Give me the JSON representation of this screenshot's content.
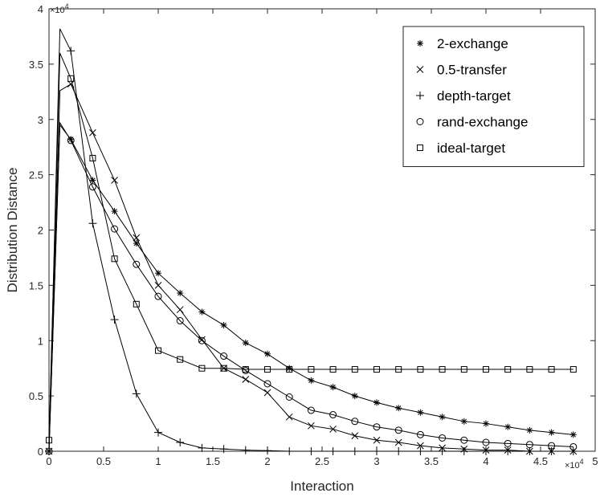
{
  "chart_data": {
    "type": "line",
    "title": "",
    "xlabel": "Interaction",
    "ylabel": "Distribution Distance",
    "x_exponent_label": "×10",
    "x_exponent": "4",
    "y_exponent_label": "×10",
    "y_exponent": "4",
    "xlim": [
      0,
      50000
    ],
    "ylim": [
      0,
      40000
    ],
    "xticks": [
      0,
      5000,
      10000,
      15000,
      20000,
      25000,
      30000,
      35000,
      40000,
      45000,
      50000
    ],
    "xtick_labels": [
      "0",
      "0.5",
      "1",
      "1.5",
      "2",
      "2.5",
      "3",
      "3.5",
      "4",
      "4.5",
      "5"
    ],
    "yticks": [
      0,
      5000,
      10000,
      15000,
      20000,
      25000,
      30000,
      35000,
      40000
    ],
    "ytick_labels": [
      "0",
      "0.5",
      "1",
      "1.5",
      "2",
      "2.5",
      "3",
      "3.5",
      "4"
    ],
    "grid": false,
    "legend_position": "top-right",
    "x": [
      0,
      1000,
      2000,
      4000,
      6000,
      8000,
      10000,
      12000,
      14000,
      16000,
      18000,
      20000,
      22000,
      24000,
      26000,
      28000,
      30000,
      32000,
      34000,
      36000,
      38000,
      40000,
      42000,
      44000,
      46000,
      48000
    ],
    "series": [
      {
        "name": "2-exchange",
        "marker": "asterisk",
        "values": [
          0,
          29500,
          28200,
          24500,
          21700,
          18800,
          16100,
          14300,
          12600,
          11400,
          9800,
          8800,
          7500,
          6400,
          5800,
          5000,
          4400,
          3900,
          3500,
          3100,
          2700,
          2500,
          2200,
          1900,
          1700,
          1500
        ]
      },
      {
        "name": "0.5-transfer",
        "marker": "x",
        "values": [
          0,
          32600,
          33200,
          28800,
          24500,
          19300,
          15000,
          12800,
          10100,
          7500,
          6500,
          5300,
          3100,
          2300,
          2000,
          1400,
          1000,
          800,
          500,
          300,
          200,
          100,
          100,
          0,
          0,
          0
        ]
      },
      {
        "name": "depth-target",
        "marker": "plus",
        "values": [
          0,
          38200,
          36200,
          20600,
          11900,
          5200,
          1700,
          800,
          300,
          200,
          100,
          50,
          0,
          0,
          0,
          0,
          0,
          0,
          0,
          0,
          0,
          0,
          0,
          0,
          0,
          0
        ]
      },
      {
        "name": "rand-exchange",
        "marker": "circle",
        "values": [
          0,
          29700,
          28100,
          23900,
          20100,
          16900,
          14000,
          11800,
          10000,
          8600,
          7300,
          6100,
          4900,
          3700,
          3300,
          2700,
          2200,
          1900,
          1500,
          1200,
          1000,
          800,
          700,
          600,
          500,
          400
        ]
      },
      {
        "name": "ideal-target",
        "marker": "square",
        "values": [
          1000,
          36000,
          33700,
          26500,
          17400,
          13300,
          9100,
          8300,
          7500,
          7500,
          7400,
          7400,
          7400,
          7400,
          7400,
          7400,
          7400,
          7400,
          7400,
          7400,
          7400,
          7400,
          7400,
          7400,
          7400,
          7400
        ]
      }
    ]
  }
}
